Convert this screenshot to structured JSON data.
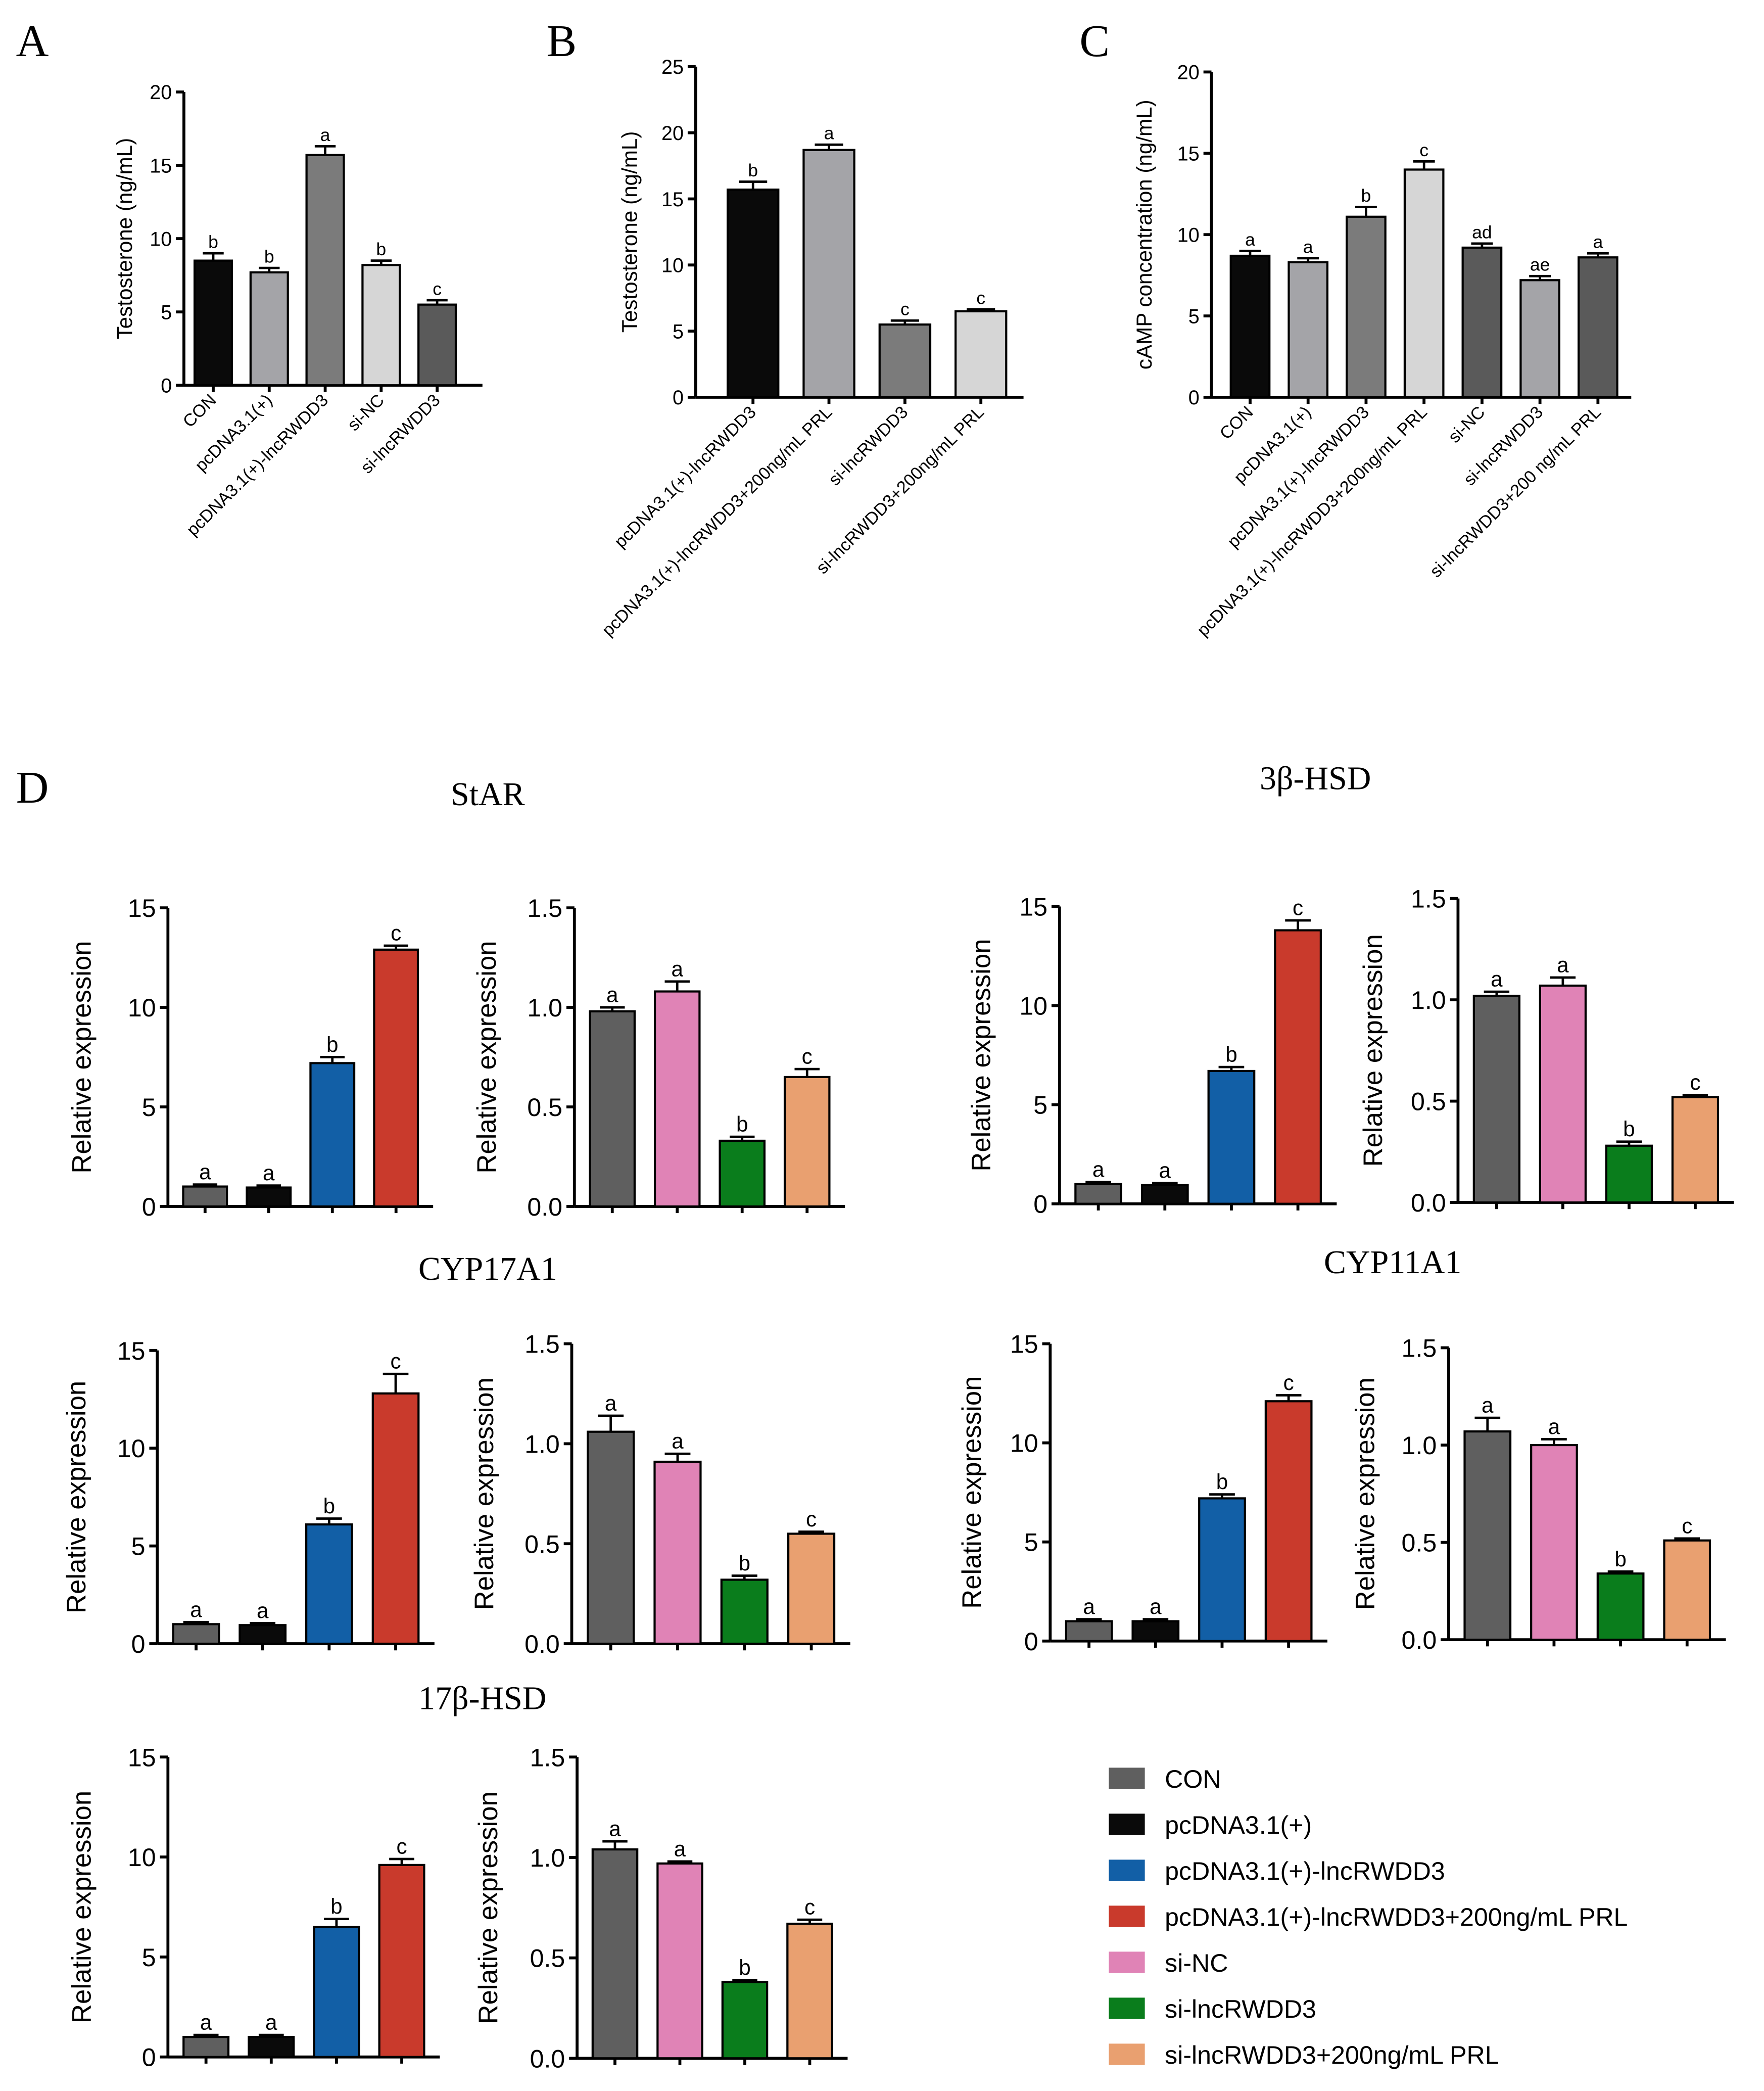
{
  "colors": {
    "CON": "#5f5f5f",
    "pcDNA3.1(+)": "#0a0a0a",
    "pcDNA3.1(+)-lncRWDD3": "#125fa6",
    "pcDNA3.1(+)-lncRWDD3+200ng/mL PRL": "#c93a2c",
    "si-NC": "#e083b6",
    "si-lncRWDD3": "#0a7d1c",
    "si-lncRWDD3+200ng/mL PRL": "#e9a070"
  },
  "legend": {
    "items": [
      {
        "label": "CON",
        "color": "#5f5f5f"
      },
      {
        "label": "pcDNA3.1(+)",
        "color": "#0a0a0a"
      },
      {
        "label": "pcDNA3.1(+)-lncRWDD3",
        "color": "#125fa6"
      },
      {
        "label": "pcDNA3.1(+)-lncRWDD3+200ng/mL PRL",
        "color": "#c93a2c"
      },
      {
        "label": "si-NC",
        "color": "#e083b6"
      },
      {
        "label": "si-lncRWDD3",
        "color": "#0a7d1c"
      },
      {
        "label": "si-lncRWDD3+200ng/mL PRL",
        "color": "#e9a070"
      }
    ]
  },
  "panel_letters": [
    "A",
    "B",
    "C",
    "D"
  ],
  "gene_titles": [
    "StAR",
    "3β-HSD",
    "CYP17A1",
    "CYP11A1",
    "17β-HSD"
  ],
  "chart_data": [
    {
      "id": "A",
      "type": "bar",
      "ylabel": "Testosterone (ng/mL)",
      "ylim": [
        0,
        20
      ],
      "yticks": [
        0,
        5,
        10,
        15,
        20
      ],
      "categories": [
        "CON",
        "pcDNA3.1(+)",
        "pcDNA3.1(+)-lncRWDD3",
        "si-NC",
        "si-lncRWDD3"
      ],
      "values": [
        8.5,
        7.7,
        15.7,
        8.2,
        5.5
      ],
      "errors": [
        0.5,
        0.3,
        0.6,
        0.3,
        0.3
      ],
      "letters": [
        "b",
        "b",
        "a",
        "b",
        "c"
      ],
      "colors": [
        "#0a0a0a",
        "#a4a4a8",
        "#7b7b7b",
        "#d6d6d6",
        "#5a5a5a"
      ]
    },
    {
      "id": "B",
      "type": "bar",
      "ylabel": "Testosterone (ng/mL)",
      "ylim": [
        0,
        25
      ],
      "yticks": [
        0,
        5,
        10,
        15,
        20,
        25
      ],
      "categories": [
        "pcDNA3.1(+)-lncRWDD3",
        "pcDNA3.1(+)-lncRWDD3+200ng/mL PRL",
        "si-lncRWDD3",
        "si-lncRWDD3+200ng/mL PRL"
      ],
      "values": [
        15.7,
        18.7,
        5.5,
        6.5
      ],
      "errors": [
        0.6,
        0.4,
        0.3,
        0.15
      ],
      "letters": [
        "b",
        "a",
        "c",
        "c"
      ],
      "colors": [
        "#0a0a0a",
        "#a4a4a8",
        "#7b7b7b",
        "#d6d6d6"
      ]
    },
    {
      "id": "C",
      "type": "bar",
      "ylabel": "cAMP concentration (ng/mL)",
      "ylim": [
        0,
        20
      ],
      "yticks": [
        0,
        5,
        10,
        15,
        20
      ],
      "categories": [
        "CON",
        "pcDNA3.1(+)",
        "pcDNA3.1(+)-lncRWDD3",
        "pcDNA3.1(+)-lncRWDD3+200ng/mL PRL",
        "si-NC",
        "si-lncRWDD3",
        "si-lncRWDD3+200 ng/mL PRL"
      ],
      "values": [
        8.7,
        8.3,
        11.1,
        14.0,
        9.2,
        7.2,
        8.6
      ],
      "errors": [
        0.3,
        0.25,
        0.6,
        0.5,
        0.25,
        0.25,
        0.25
      ],
      "letters": [
        "a",
        "a",
        "b",
        "c",
        "ad",
        "ae",
        "a"
      ],
      "colors": [
        "#0a0a0a",
        "#a4a4a8",
        "#7b7b7b",
        "#d6d6d6",
        "#5a5a5a",
        "#a4a4a8",
        "#5a5a5a"
      ]
    },
    {
      "id": "D-StAR-1",
      "type": "bar",
      "ylabel": "Relative expression",
      "ylim": [
        0,
        15
      ],
      "yticks": [
        "0",
        "5",
        "10",
        "15"
      ],
      "values": [
        1.0,
        0.95,
        7.2,
        12.9
      ],
      "errors": [
        0.1,
        0.1,
        0.3,
        0.2
      ],
      "letters": [
        "a",
        "a",
        "b",
        "c"
      ],
      "colors": [
        "#5f5f5f",
        "#0a0a0a",
        "#125fa6",
        "#c93a2c"
      ]
    },
    {
      "id": "D-StAR-2",
      "type": "bar",
      "ylabel": "Relative expression",
      "ylim": [
        0,
        1.5
      ],
      "yticks": [
        "0.0",
        "0.5",
        "1.0",
        "1.5"
      ],
      "values": [
        0.98,
        1.08,
        0.33,
        0.65
      ],
      "errors": [
        0.02,
        0.05,
        0.02,
        0.04
      ],
      "letters": [
        "a",
        "a",
        "b",
        "c"
      ],
      "colors": [
        "#5f5f5f",
        "#e083b6",
        "#0a7d1c",
        "#e9a070"
      ]
    },
    {
      "id": "D-3bHSD-1",
      "type": "bar",
      "ylabel": "Relative expression",
      "ylim": [
        0,
        15
      ],
      "yticks": [
        "0",
        "5",
        "10",
        "15"
      ],
      "values": [
        1.0,
        0.95,
        6.7,
        13.8
      ],
      "errors": [
        0.1,
        0.1,
        0.2,
        0.5
      ],
      "letters": [
        "a",
        "a",
        "b",
        "c"
      ],
      "colors": [
        "#5f5f5f",
        "#0a0a0a",
        "#125fa6",
        "#c93a2c"
      ]
    },
    {
      "id": "D-3bHSD-2",
      "type": "bar",
      "ylabel": "Relative expression",
      "ylim": [
        0,
        1.5
      ],
      "yticks": [
        "0.0",
        "0.5",
        "1.0",
        "1.5"
      ],
      "values": [
        1.02,
        1.07,
        0.28,
        0.52
      ],
      "errors": [
        0.02,
        0.04,
        0.02,
        0.01
      ],
      "letters": [
        "a",
        "a",
        "b",
        "c"
      ],
      "colors": [
        "#5f5f5f",
        "#e083b6",
        "#0a7d1c",
        "#e9a070"
      ]
    },
    {
      "id": "D-CYP17A1-1",
      "type": "bar",
      "ylabel": "Relative expression",
      "ylim": [
        0,
        15
      ],
      "yticks": [
        "0",
        "5",
        "10",
        "15"
      ],
      "values": [
        1.0,
        0.95,
        6.1,
        12.8
      ],
      "errors": [
        0.1,
        0.1,
        0.3,
        1.0
      ],
      "letters": [
        "a",
        "a",
        "b",
        "c"
      ],
      "colors": [
        "#5f5f5f",
        "#0a0a0a",
        "#125fa6",
        "#c93a2c"
      ]
    },
    {
      "id": "D-CYP17A1-2",
      "type": "bar",
      "ylabel": "Relative expression",
      "ylim": [
        0,
        1.5
      ],
      "yticks": [
        "0.0",
        "0.5",
        "1.0",
        "1.5"
      ],
      "values": [
        1.06,
        0.91,
        0.32,
        0.55
      ],
      "errors": [
        0.08,
        0.04,
        0.02,
        0.01
      ],
      "letters": [
        "a",
        "a",
        "b",
        "c"
      ],
      "colors": [
        "#5f5f5f",
        "#e083b6",
        "#0a7d1c",
        "#e9a070"
      ]
    },
    {
      "id": "D-CYP11A1-1",
      "type": "bar",
      "ylabel": "Relative expression",
      "ylim": [
        0,
        15
      ],
      "yticks": [
        "0",
        "5",
        "10",
        "15"
      ],
      "values": [
        1.0,
        1.0,
        7.2,
        12.1
      ],
      "errors": [
        0.1,
        0.1,
        0.2,
        0.3
      ],
      "letters": [
        "a",
        "a",
        "b",
        "c"
      ],
      "colors": [
        "#5f5f5f",
        "#0a0a0a",
        "#125fa6",
        "#c93a2c"
      ]
    },
    {
      "id": "D-CYP11A1-2",
      "type": "bar",
      "ylabel": "Relative expression",
      "ylim": [
        0,
        1.5
      ],
      "yticks": [
        "0.0",
        "0.5",
        "1.0",
        "1.5"
      ],
      "values": [
        1.07,
        1.0,
        0.34,
        0.51
      ],
      "errors": [
        0.07,
        0.03,
        0.01,
        0.01
      ],
      "letters": [
        "a",
        "a",
        "b",
        "c"
      ],
      "colors": [
        "#5f5f5f",
        "#e083b6",
        "#0a7d1c",
        "#e9a070"
      ]
    },
    {
      "id": "D-17bHSD-1",
      "type": "bar",
      "ylabel": "Relative expression",
      "ylim": [
        0,
        15
      ],
      "yticks": [
        "0",
        "5",
        "10",
        "15"
      ],
      "values": [
        1.0,
        1.0,
        6.5,
        9.6
      ],
      "errors": [
        0.1,
        0.1,
        0.4,
        0.3
      ],
      "letters": [
        "a",
        "a",
        "b",
        "c"
      ],
      "colors": [
        "#5f5f5f",
        "#0a0a0a",
        "#125fa6",
        "#c93a2c"
      ]
    },
    {
      "id": "D-17bHSD-2",
      "type": "bar",
      "ylabel": "Relative expression",
      "ylim": [
        0,
        1.5
      ],
      "yticks": [
        "0.0",
        "0.5",
        "1.0",
        "1.5"
      ],
      "values": [
        1.04,
        0.97,
        0.38,
        0.67
      ],
      "errors": [
        0.04,
        0.01,
        0.01,
        0.02
      ],
      "letters": [
        "a",
        "a",
        "b",
        "c"
      ],
      "colors": [
        "#5f5f5f",
        "#e083b6",
        "#0a7d1c",
        "#e9a070"
      ]
    }
  ]
}
